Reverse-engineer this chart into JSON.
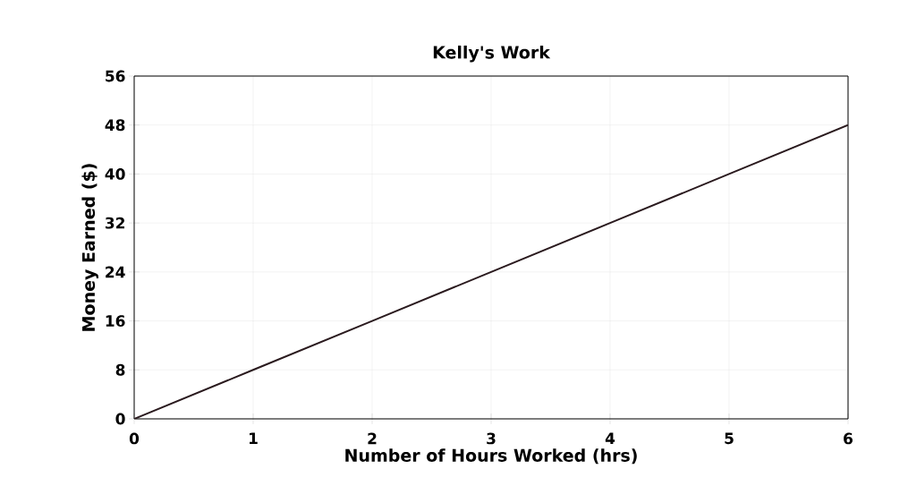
{
  "chart_data": {
    "type": "line",
    "title": "Kelly's Work",
    "xlabel": "Number of Hours Worked (hrs)",
    "ylabel": "Money Earned ($)",
    "x": [
      0,
      1,
      2,
      3,
      4,
      5,
      6
    ],
    "series": [
      {
        "color": "#2a1a1e",
        "values": [
          0,
          8,
          16,
          24,
          32,
          40,
          48
        ]
      }
    ],
    "xlim": [
      0,
      6
    ],
    "ylim": [
      0,
      56
    ],
    "xticks": [
      0,
      1,
      2,
      3,
      4,
      5,
      6
    ],
    "yticks": [
      0,
      8,
      16,
      24,
      32,
      40,
      48,
      56
    ],
    "grid": true,
    "marker": "none",
    "line_style": "solid"
  }
}
